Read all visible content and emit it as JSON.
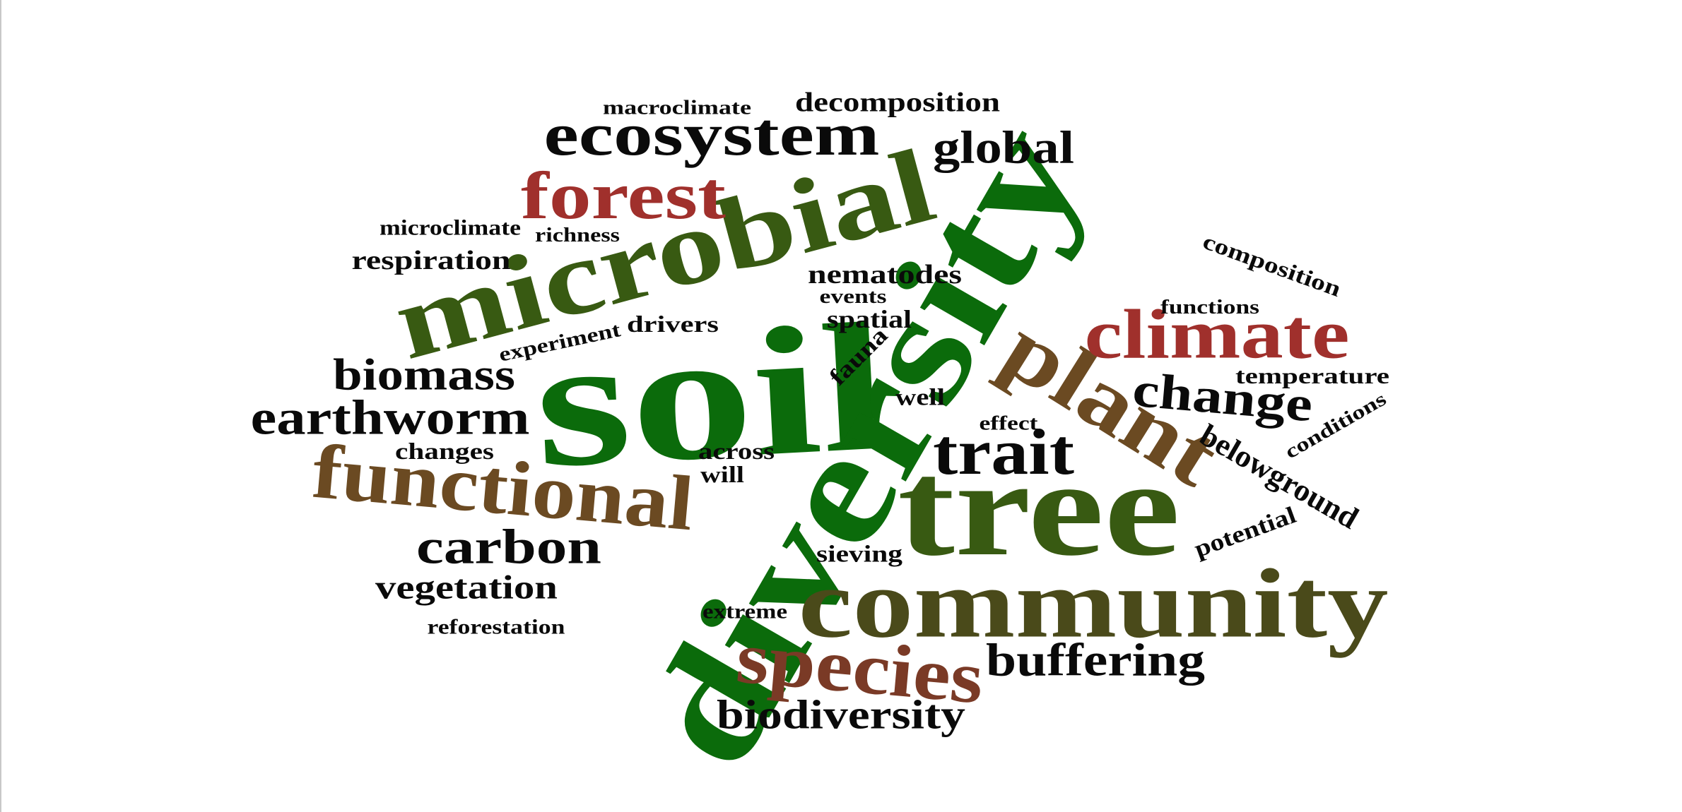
{
  "colors": {
    "black": "#0a0a0a",
    "green": "#0b6b0b",
    "olive_green": "#385a12",
    "olive": "#4a4a1a",
    "brown": "#6b4a22",
    "rust": "#7a3a26",
    "red": "#a0302c"
  },
  "words": [
    {
      "text": "soil",
      "color": "green"
    },
    {
      "text": "diversity",
      "color": "green"
    },
    {
      "text": "microbial",
      "color": "olive_green"
    },
    {
      "text": "tree",
      "color": "olive_green"
    },
    {
      "text": "community",
      "color": "olive"
    },
    {
      "text": "functional",
      "color": "brown"
    },
    {
      "text": "plant",
      "color": "brown"
    },
    {
      "text": "species",
      "color": "rust"
    },
    {
      "text": "forest",
      "color": "red"
    },
    {
      "text": "climate",
      "color": "red"
    },
    {
      "text": "ecosystem",
      "color": "black"
    },
    {
      "text": "global",
      "color": "black"
    },
    {
      "text": "trait",
      "color": "black"
    },
    {
      "text": "change",
      "color": "black"
    },
    {
      "text": "earthworm",
      "color": "black"
    },
    {
      "text": "biomass",
      "color": "black"
    },
    {
      "text": "carbon",
      "color": "black"
    },
    {
      "text": "vegetation",
      "color": "black"
    },
    {
      "text": "buffering",
      "color": "black"
    },
    {
      "text": "biodiversity",
      "color": "black"
    },
    {
      "text": "belowground",
      "color": "black"
    },
    {
      "text": "decomposition",
      "color": "black"
    },
    {
      "text": "macroclimate",
      "color": "black"
    },
    {
      "text": "respiration",
      "color": "black"
    },
    {
      "text": "microclimate",
      "color": "black"
    },
    {
      "text": "richness",
      "color": "black"
    },
    {
      "text": "composition",
      "color": "black"
    },
    {
      "text": "nematodes",
      "color": "black"
    },
    {
      "text": "events",
      "color": "black"
    },
    {
      "text": "spatial",
      "color": "black"
    },
    {
      "text": "fauna",
      "color": "black"
    },
    {
      "text": "drivers",
      "color": "black"
    },
    {
      "text": "experiment",
      "color": "black"
    },
    {
      "text": "functions",
      "color": "black"
    },
    {
      "text": "temperature",
      "color": "black"
    },
    {
      "text": "conditions",
      "color": "black"
    },
    {
      "text": "well",
      "color": "black"
    },
    {
      "text": "effect",
      "color": "black"
    },
    {
      "text": "across",
      "color": "black"
    },
    {
      "text": "will",
      "color": "black"
    },
    {
      "text": "changes",
      "color": "black"
    },
    {
      "text": "potential",
      "color": "black"
    },
    {
      "text": "sieving",
      "color": "black"
    },
    {
      "text": "extreme",
      "color": "black"
    },
    {
      "text": "reforestation",
      "color": "black"
    }
  ]
}
